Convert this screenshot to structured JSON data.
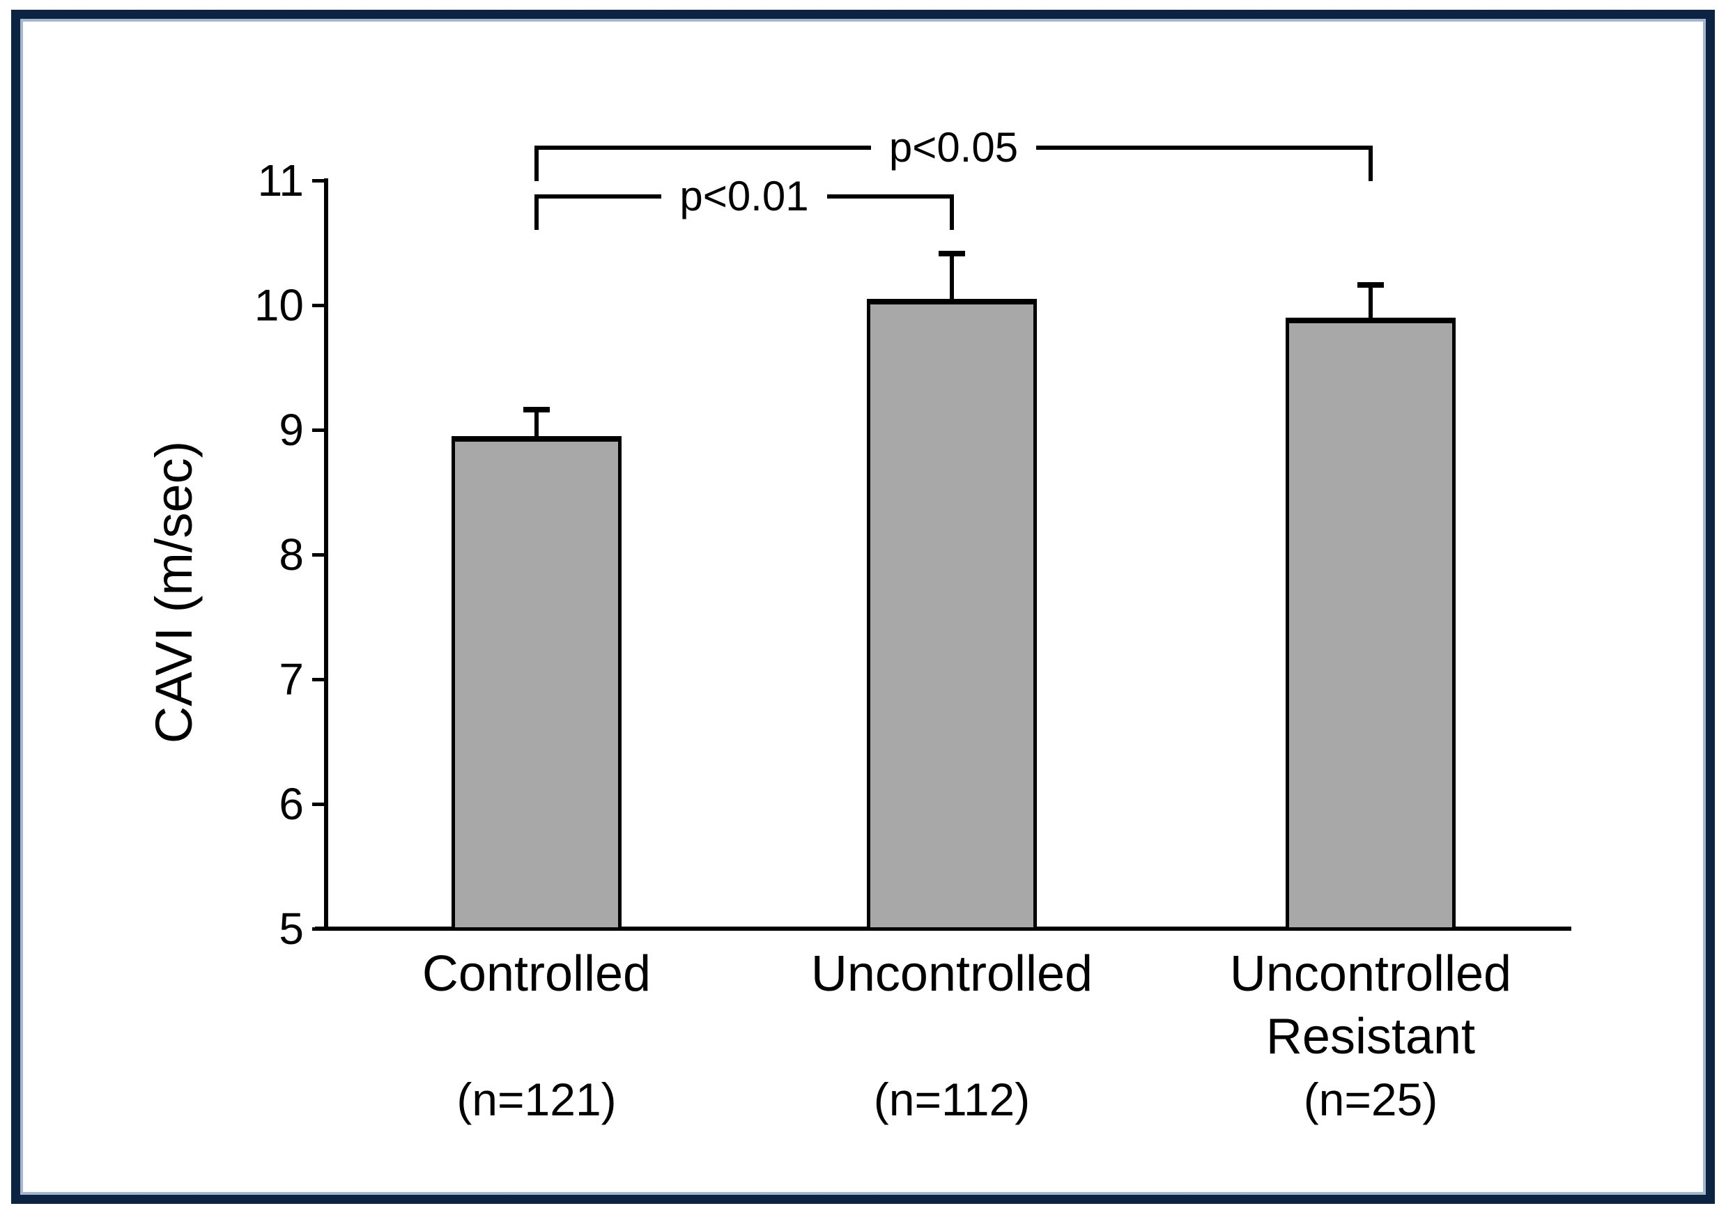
{
  "frame": {
    "border_color": "#0d2342",
    "inner_line_color": "#a3b6ce",
    "background": "#ffffff"
  },
  "chart_data": {
    "type": "bar",
    "title": "",
    "xlabel": "",
    "ylabel": "CAVI (m/sec)",
    "ylim": [
      5,
      11
    ],
    "yticks": [
      5,
      6,
      7,
      8,
      9,
      10,
      11
    ],
    "grid": false,
    "legend": false,
    "bar_color": "#a8a8a8",
    "bar_border_color": "#000000",
    "axis_color": "#000000",
    "categories": [
      {
        "slug": "controlled",
        "label_lines": [
          "Controlled"
        ],
        "n_label": "(n=121)"
      },
      {
        "slug": "uncontrolled",
        "label_lines": [
          "Uncontrolled"
        ],
        "n_label": "(n=112)"
      },
      {
        "slug": "uncontrolled-resistant",
        "label_lines": [
          "Uncontrolled",
          "Resistant"
        ],
        "n_label": "(n=25)"
      }
    ],
    "series": [
      {
        "name": "CAVI",
        "values": [
          8.95,
          10.05,
          9.9
        ],
        "errors_plus": [
          0.2,
          0.35,
          0.25
        ]
      }
    ],
    "significance": [
      {
        "label": "p<0.01",
        "from": 0,
        "to": 1,
        "level_value": 10.87
      },
      {
        "label": "p<0.05",
        "from": 0,
        "to": 2,
        "level_value": 11.26
      }
    ]
  }
}
